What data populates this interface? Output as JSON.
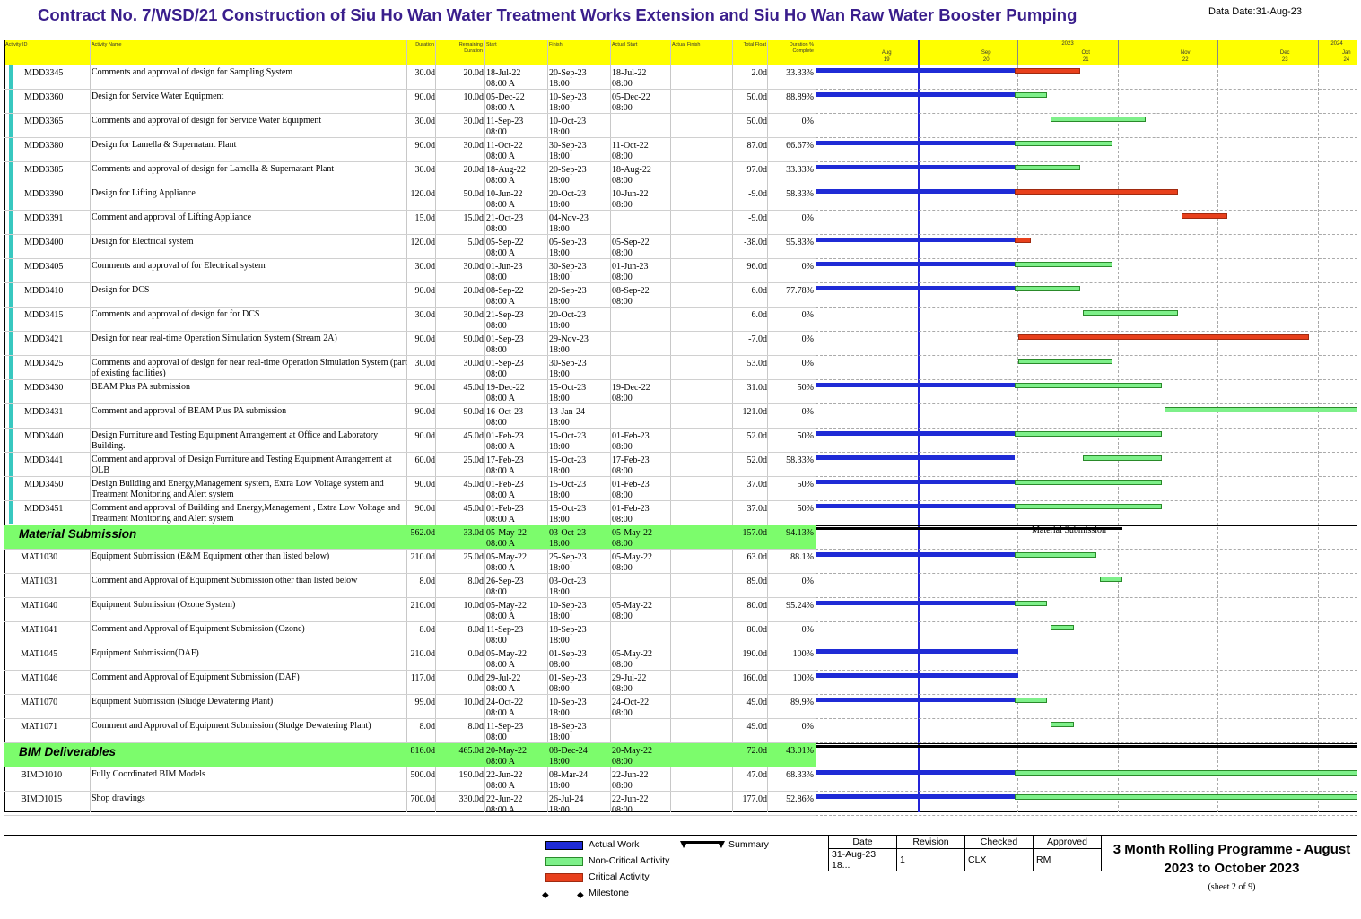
{
  "header": {
    "title": "Contract No. 7/WSD/21 Construction of Siu Ho Wan Water Treatment Works Extension and Siu Ho Wan Raw Water Booster Pumping",
    "data_date": "Data Date:31-Aug-23"
  },
  "columns": {
    "id": "Activity ID",
    "name": "Activity Name",
    "duration": "Duration",
    "remaining": "Remaining Duration",
    "start": "Start",
    "finish": "Finish",
    "actual_start": "Actual Start",
    "actual_finish": "Actual Finish",
    "total_float": "Total Float",
    "pct": "Duration % Complete"
  },
  "timescale": {
    "year_2023": "2023",
    "year_2024": "2024",
    "months": [
      "Aug",
      "Sep",
      "Oct",
      "Nov",
      "Dec",
      "Jan"
    ],
    "weeks": [
      "19",
      "20",
      "21",
      "22",
      "23",
      "24"
    ]
  },
  "chart_data": {
    "type": "gantt",
    "data_date": "2023-08-31",
    "rows": [
      {
        "id": "MDD3345",
        "name": "Comments and approval of design for Sampling System",
        "dur": "30.0d",
        "rem": "20.0d",
        "start": "18-Jul-22",
        "start2": "08:00 A",
        "finish": "20-Sep-23",
        "finish2": "18:00",
        "as": "18-Jul-22",
        "as2": "08:00",
        "tf": "2.0d",
        "pct": "33.33%",
        "bars": [
          {
            "k": "actual",
            "s": "2023-07-01",
            "e": "2023-08-31"
          },
          {
            "k": "crit",
            "s": "2023-08-31",
            "e": "2023-09-20"
          }
        ]
      },
      {
        "id": "MDD3360",
        "name": "Design for Service Water Equipment",
        "dur": "90.0d",
        "rem": "10.0d",
        "start": "05-Dec-22",
        "start2": "08:00 A",
        "finish": "10-Sep-23",
        "finish2": "18:00",
        "as": "05-Dec-22",
        "as2": "08:00",
        "tf": "50.0d",
        "pct": "88.89%",
        "bars": [
          {
            "k": "actual",
            "s": "2023-07-01",
            "e": "2023-08-31"
          },
          {
            "k": "noncrit",
            "s": "2023-08-31",
            "e": "2023-09-10"
          }
        ]
      },
      {
        "id": "MDD3365",
        "name": "Comments and approval of design for Service Water Equipment",
        "dur": "30.0d",
        "rem": "30.0d",
        "start": "11-Sep-23",
        "start2": "08:00",
        "finish": "10-Oct-23",
        "finish2": "18:00",
        "as": "",
        "as2": "",
        "tf": "50.0d",
        "pct": "0%",
        "bars": [
          {
            "k": "noncrit",
            "s": "2023-09-11",
            "e": "2023-10-10"
          }
        ]
      },
      {
        "id": "MDD3380",
        "name": "Design for Lamella & Supernatant Plant",
        "dur": "90.0d",
        "rem": "30.0d",
        "start": "11-Oct-22",
        "start2": "08:00 A",
        "finish": "30-Sep-23",
        "finish2": "18:00",
        "as": "11-Oct-22",
        "as2": "08:00",
        "tf": "87.0d",
        "pct": "66.67%",
        "bars": [
          {
            "k": "actual",
            "s": "2023-07-01",
            "e": "2023-08-31"
          },
          {
            "k": "noncrit",
            "s": "2023-08-31",
            "e": "2023-09-30"
          }
        ]
      },
      {
        "id": "MDD3385",
        "name": "Comments and approval of design for Lamella & Supernatant Plant",
        "dur": "30.0d",
        "rem": "20.0d",
        "start": "18-Aug-22",
        "start2": "08:00 A",
        "finish": "20-Sep-23",
        "finish2": "18:00",
        "as": "18-Aug-22",
        "as2": "08:00",
        "tf": "97.0d",
        "pct": "33.33%",
        "bars": [
          {
            "k": "actual",
            "s": "2023-07-01",
            "e": "2023-08-31"
          },
          {
            "k": "noncrit",
            "s": "2023-08-31",
            "e": "2023-09-20"
          }
        ]
      },
      {
        "id": "MDD3390",
        "name": "Design for Lifting Appliance",
        "dur": "120.0d",
        "rem": "50.0d",
        "start": "10-Jun-22",
        "start2": "08:00 A",
        "finish": "20-Oct-23",
        "finish2": "18:00",
        "as": "10-Jun-22",
        "as2": "08:00",
        "tf": "-9.0d",
        "pct": "58.33%",
        "bars": [
          {
            "k": "actual",
            "s": "2023-07-01",
            "e": "2023-08-31"
          },
          {
            "k": "crit",
            "s": "2023-08-31",
            "e": "2023-10-20"
          }
        ]
      },
      {
        "id": "MDD3391",
        "name": "Comment and approval of Lifting Appliance",
        "dur": "15.0d",
        "rem": "15.0d",
        "start": "21-Oct-23",
        "start2": "08:00",
        "finish": "04-Nov-23",
        "finish2": "18:00",
        "as": "",
        "as2": "",
        "tf": "-9.0d",
        "pct": "0%",
        "bars": [
          {
            "k": "crit",
            "s": "2023-10-21",
            "e": "2023-11-04"
          }
        ]
      },
      {
        "id": "MDD3400",
        "name": "Design for Electrical system",
        "dur": "120.0d",
        "rem": "5.0d",
        "start": "05-Sep-22",
        "start2": "08:00 A",
        "finish": "05-Sep-23",
        "finish2": "18:00",
        "as": "05-Sep-22",
        "as2": "08:00",
        "tf": "-38.0d",
        "pct": "95.83%",
        "bars": [
          {
            "k": "actual",
            "s": "2023-07-01",
            "e": "2023-08-31"
          },
          {
            "k": "crit",
            "s": "2023-08-31",
            "e": "2023-09-05"
          }
        ]
      },
      {
        "id": "MDD3405",
        "name": "Comments and approval of  for Electrical system",
        "dur": "30.0d",
        "rem": "30.0d",
        "start": "01-Jun-23",
        "start2": "08:00",
        "finish": "30-Sep-23",
        "finish2": "18:00",
        "as": "01-Jun-23",
        "as2": "08:00",
        "tf": "96.0d",
        "pct": "0%",
        "bars": [
          {
            "k": "actual",
            "s": "2023-07-01",
            "e": "2023-08-31"
          },
          {
            "k": "noncrit",
            "s": "2023-08-31",
            "e": "2023-09-30"
          }
        ]
      },
      {
        "id": "MDD3410",
        "name": "Design for DCS",
        "dur": "90.0d",
        "rem": "20.0d",
        "start": "08-Sep-22",
        "start2": "08:00 A",
        "finish": "20-Sep-23",
        "finish2": "18:00",
        "as": "08-Sep-22",
        "as2": "08:00",
        "tf": "6.0d",
        "pct": "77.78%",
        "bars": [
          {
            "k": "actual",
            "s": "2023-07-01",
            "e": "2023-08-31"
          },
          {
            "k": "noncrit",
            "s": "2023-08-31",
            "e": "2023-09-20"
          }
        ]
      },
      {
        "id": "MDD3415",
        "name": "Comments and approval of design for for DCS",
        "dur": "30.0d",
        "rem": "30.0d",
        "start": "21-Sep-23",
        "start2": "08:00",
        "finish": "20-Oct-23",
        "finish2": "18:00",
        "as": "",
        "as2": "",
        "tf": "6.0d",
        "pct": "0%",
        "bars": [
          {
            "k": "noncrit",
            "s": "2023-09-21",
            "e": "2023-10-20"
          }
        ]
      },
      {
        "id": "MDD3421",
        "name": "Design for near real-time Operation Simulation System (Stream 2A)",
        "dur": "90.0d",
        "rem": "90.0d",
        "start": "01-Sep-23",
        "start2": "08:00",
        "finish": "29-Nov-23",
        "finish2": "18:00",
        "as": "",
        "as2": "",
        "tf": "-7.0d",
        "pct": "0%",
        "bars": [
          {
            "k": "crit",
            "s": "2023-09-01",
            "e": "2023-11-29"
          }
        ]
      },
      {
        "id": "MDD3425",
        "name": "Comments and approval of design for near real-time Operation Simulation System (part of existing facilities)",
        "dur": "30.0d",
        "rem": "30.0d",
        "start": "01-Sep-23",
        "start2": "08:00",
        "finish": "30-Sep-23",
        "finish2": "18:00",
        "as": "",
        "as2": "",
        "tf": "53.0d",
        "pct": "0%",
        "bars": [
          {
            "k": "noncrit",
            "s": "2023-09-01",
            "e": "2023-09-30"
          }
        ]
      },
      {
        "id": "MDD3430",
        "name": "BEAM Plus PA submission",
        "dur": "90.0d",
        "rem": "45.0d",
        "start": "19-Dec-22",
        "start2": "08:00 A",
        "finish": "15-Oct-23",
        "finish2": "18:00",
        "as": "19-Dec-22",
        "as2": "08:00",
        "tf": "31.0d",
        "pct": "50%",
        "bars": [
          {
            "k": "actual",
            "s": "2023-07-01",
            "e": "2023-08-31"
          },
          {
            "k": "noncrit",
            "s": "2023-08-31",
            "e": "2023-10-15"
          }
        ]
      },
      {
        "id": "MDD3431",
        "name": "Comment and approval of BEAM Plus PA submission",
        "dur": "90.0d",
        "rem": "90.0d",
        "start": "16-Oct-23",
        "start2": "08:00",
        "finish": "13-Jan-24",
        "finish2": "18:00",
        "as": "",
        "as2": "",
        "tf": "121.0d",
        "pct": "0%",
        "bars": [
          {
            "k": "noncrit",
            "s": "2023-10-16",
            "e": "2024-01-13"
          }
        ]
      },
      {
        "id": "MDD3440",
        "name": "Design Furniture and Testing Equipment Arrangement at Office and Laboratory Building.",
        "dur": "90.0d",
        "rem": "45.0d",
        "start": "01-Feb-23",
        "start2": "08:00 A",
        "finish": "15-Oct-23",
        "finish2": "18:00",
        "as": "01-Feb-23",
        "as2": "08:00",
        "tf": "52.0d",
        "pct": "50%",
        "bars": [
          {
            "k": "actual",
            "s": "2023-07-01",
            "e": "2023-08-31"
          },
          {
            "k": "noncrit",
            "s": "2023-08-31",
            "e": "2023-10-15"
          }
        ]
      },
      {
        "id": "MDD3441",
        "name": "Comment and approval of Design Furniture and Testing Equipment Arrangement at OLB",
        "dur": "60.0d",
        "rem": "25.0d",
        "start": "17-Feb-23",
        "start2": "08:00 A",
        "finish": "15-Oct-23",
        "finish2": "18:00",
        "as": "17-Feb-23",
        "as2": "08:00",
        "tf": "52.0d",
        "pct": "58.33%",
        "bars": [
          {
            "k": "actual",
            "s": "2023-07-01",
            "e": "2023-08-31"
          },
          {
            "k": "noncrit",
            "s": "2023-09-21",
            "e": "2023-10-15"
          }
        ]
      },
      {
        "id": "MDD3450",
        "name": "Design Building and Energy,Management system, Extra Low Voltage system and Treatment Monitoring and Alert system",
        "dur": "90.0d",
        "rem": "45.0d",
        "start": "01-Feb-23",
        "start2": "08:00 A",
        "finish": "15-Oct-23",
        "finish2": "18:00",
        "as": "01-Feb-23",
        "as2": "08:00",
        "tf": "37.0d",
        "pct": "50%",
        "bars": [
          {
            "k": "actual",
            "s": "2023-07-01",
            "e": "2023-08-31"
          },
          {
            "k": "noncrit",
            "s": "2023-08-31",
            "e": "2023-10-15"
          }
        ]
      },
      {
        "id": "MDD3451",
        "name": "Comment and approval of Building and Energy,Management , Extra Low Voltage and Treatment Monitoring and Alert system",
        "dur": "90.0d",
        "rem": "45.0d",
        "start": "01-Feb-23",
        "start2": "08:00 A",
        "finish": "15-Oct-23",
        "finish2": "18:00",
        "as": "01-Feb-23",
        "as2": "08:00",
        "tf": "37.0d",
        "pct": "50%",
        "bars": [
          {
            "k": "actual",
            "s": "2023-07-01",
            "e": "2023-08-31"
          },
          {
            "k": "noncrit",
            "s": "2023-08-31",
            "e": "2023-10-15"
          }
        ]
      },
      {
        "group": true,
        "name": "Material Submission",
        "dur": "562.0d",
        "rem": "33.0d",
        "start": "05-May-22",
        "start2": "08:00 A",
        "finish": "03-Oct-23",
        "finish2": "18:00",
        "as": "05-May-22",
        "as2": "08:00",
        "tf": "157.0d",
        "pct": "94.13%",
        "bars": [
          {
            "k": "summary",
            "s": "2023-07-01",
            "e": "2023-10-03"
          }
        ],
        "bar_label": "Material Submission"
      },
      {
        "id": "MAT1030",
        "name": "Equipment Submission (E&M Equipment other than listed below)",
        "dur": "210.0d",
        "rem": "25.0d",
        "start": "05-May-22",
        "start2": "08:00 A",
        "finish": "25-Sep-23",
        "finish2": "18:00",
        "as": "05-May-22",
        "as2": "08:00",
        "tf": "63.0d",
        "pct": "88.1%",
        "bars": [
          {
            "k": "actual",
            "s": "2023-07-01",
            "e": "2023-08-31"
          },
          {
            "k": "noncrit",
            "s": "2023-08-31",
            "e": "2023-09-25"
          }
        ]
      },
      {
        "id": "MAT1031",
        "name": "Comment and Approval of Equipment Submission other than listed below",
        "dur": "8.0d",
        "rem": "8.0d",
        "start": "26-Sep-23",
        "start2": "08:00",
        "finish": "03-Oct-23",
        "finish2": "18:00",
        "as": "",
        "as2": "",
        "tf": "89.0d",
        "pct": "0%",
        "bars": [
          {
            "k": "noncrit",
            "s": "2023-09-26",
            "e": "2023-10-03"
          }
        ]
      },
      {
        "id": "MAT1040",
        "name": "Equipment Submission (Ozone System)",
        "dur": "210.0d",
        "rem": "10.0d",
        "start": "05-May-22",
        "start2": "08:00 A",
        "finish": "10-Sep-23",
        "finish2": "18:00",
        "as": "05-May-22",
        "as2": "08:00",
        "tf": "80.0d",
        "pct": "95.24%",
        "bars": [
          {
            "k": "actual",
            "s": "2023-07-01",
            "e": "2023-08-31"
          },
          {
            "k": "noncrit",
            "s": "2023-08-31",
            "e": "2023-09-10"
          }
        ]
      },
      {
        "id": "MAT1041",
        "name": "Comment and Approval of Equipment Submission (Ozone)",
        "dur": "8.0d",
        "rem": "8.0d",
        "start": "11-Sep-23",
        "start2": "08:00",
        "finish": "18-Sep-23",
        "finish2": "18:00",
        "as": "",
        "as2": "",
        "tf": "80.0d",
        "pct": "0%",
        "bars": [
          {
            "k": "noncrit",
            "s": "2023-09-11",
            "e": "2023-09-18"
          }
        ]
      },
      {
        "id": "MAT1045",
        "name": "Equipment Submission(DAF)",
        "dur": "210.0d",
        "rem": "0.0d",
        "start": "05-May-22",
        "start2": "08:00 A",
        "finish": "01-Sep-23",
        "finish2": "08:00",
        "as": "05-May-22",
        "as2": "08:00",
        "tf": "190.0d",
        "pct": "100%",
        "bars": [
          {
            "k": "actual",
            "s": "2023-07-01",
            "e": "2023-09-01"
          }
        ]
      },
      {
        "id": "MAT1046",
        "name": "Comment and Approval of Equipment Submission (DAF)",
        "dur": "117.0d",
        "rem": "0.0d",
        "start": "29-Jul-22",
        "start2": "08:00 A",
        "finish": "01-Sep-23",
        "finish2": "08:00",
        "as": "29-Jul-22",
        "as2": "08:00",
        "tf": "160.0d",
        "pct": "100%",
        "bars": [
          {
            "k": "actual",
            "s": "2023-07-01",
            "e": "2023-09-01"
          }
        ]
      },
      {
        "id": "MAT1070",
        "name": "Equipment Submission (Sludge Dewatering Plant)",
        "dur": "99.0d",
        "rem": "10.0d",
        "start": "24-Oct-22",
        "start2": "08:00 A",
        "finish": "10-Sep-23",
        "finish2": "18:00",
        "as": "24-Oct-22",
        "as2": "08:00",
        "tf": "49.0d",
        "pct": "89.9%",
        "bars": [
          {
            "k": "actual",
            "s": "2023-07-01",
            "e": "2023-08-31"
          },
          {
            "k": "noncrit",
            "s": "2023-08-31",
            "e": "2023-09-10"
          }
        ]
      },
      {
        "id": "MAT1071",
        "name": "Comment and Approval of Equipment Submission (Sludge Dewatering Plant)",
        "dur": "8.0d",
        "rem": "8.0d",
        "start": "11-Sep-23",
        "start2": "08:00",
        "finish": "18-Sep-23",
        "finish2": "18:00",
        "as": "",
        "as2": "",
        "tf": "49.0d",
        "pct": "0%",
        "bars": [
          {
            "k": "noncrit",
            "s": "2023-09-11",
            "e": "2023-09-18"
          }
        ]
      },
      {
        "group": true,
        "name": "BIM Deliverables",
        "dur": "816.0d",
        "rem": "465.0d",
        "start": "20-May-22",
        "start2": "08:00 A",
        "finish": "08-Dec-24",
        "finish2": "18:00",
        "as": "20-May-22",
        "as2": "08:00",
        "tf": "72.0d",
        "pct": "43.01%",
        "bars": [
          {
            "k": "summary",
            "s": "2023-07-01",
            "e": "2024-03-31"
          }
        ]
      },
      {
        "id": "BIMD1010",
        "name": "Fully Coordinated BIM Models",
        "dur": "500.0d",
        "rem": "190.0d",
        "start": "22-Jun-22",
        "start2": "08:00 A",
        "finish": "08-Mar-24",
        "finish2": "18:00",
        "as": "22-Jun-22",
        "as2": "08:00",
        "tf": "47.0d",
        "pct": "68.33%",
        "bars": [
          {
            "k": "actual",
            "s": "2023-07-01",
            "e": "2023-08-31"
          },
          {
            "k": "noncrit",
            "s": "2023-08-31",
            "e": "2024-03-31"
          }
        ]
      },
      {
        "id": "BIMD1015",
        "name": "Shop drawings",
        "dur": "700.0d",
        "rem": "330.0d",
        "start": "22-Jun-22",
        "start2": "08:00 A",
        "finish": "26-Jul-24",
        "finish2": "18:00",
        "as": "22-Jun-22",
        "as2": "08:00",
        "tf": "177.0d",
        "pct": "52.86%",
        "bars": [
          {
            "k": "actual",
            "s": "2023-07-01",
            "e": "2023-08-31"
          },
          {
            "k": "noncrit",
            "s": "2023-08-31",
            "e": "2024-03-31"
          }
        ]
      }
    ]
  },
  "legend": {
    "actual": "Actual Work",
    "noncrit": "Non-Critical Activity",
    "crit": "Critical Activity",
    "milestone": "Milestone",
    "summary": "Summary"
  },
  "revision_table": {
    "headers": [
      "Date",
      "Revision",
      "Checked",
      "Approved"
    ],
    "values": [
      "31-Aug-23 18...",
      "1",
      "CLX",
      "RM"
    ]
  },
  "footer": {
    "programme_title": "3 Month Rolling Programme - August 2023 to October 2023",
    "sheet": "(sheet 2 of 9)"
  },
  "colors": {
    "actual": "#1f2bd6",
    "noncrit": "#7ef08a",
    "crit": "#e8401c",
    "header_bg": "#ffff00",
    "group_bg": "#7cfc6c",
    "title": "#3a1e8c"
  }
}
